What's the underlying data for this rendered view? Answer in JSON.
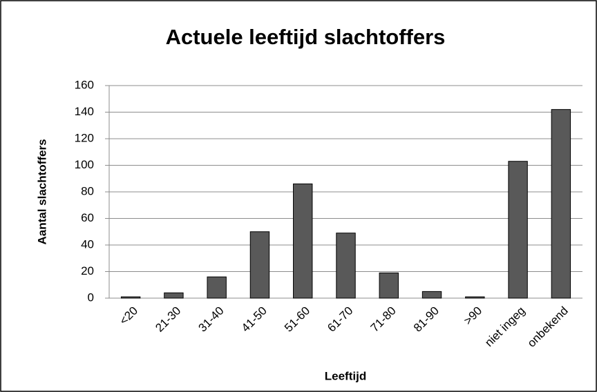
{
  "chart_data": {
    "type": "bar",
    "title": "Actuele leeftijd slachtoffers",
    "x_label": "Leeftijd",
    "y_label": "Aantal slachtoffers",
    "categories": [
      "<20",
      "21-30",
      "31-40",
      "41-50",
      "51-60",
      "61-70",
      "71-80",
      "81-90",
      ">90",
      "niet ingeg",
      "onbekend"
    ],
    "values": [
      1,
      4,
      16,
      50,
      86,
      49,
      19,
      5,
      1,
      103,
      142
    ],
    "color": "#595959",
    "ylim": [
      0,
      160
    ],
    "yticks": [
      0,
      20,
      40,
      60,
      80,
      100,
      120,
      140,
      160
    ],
    "grid": true
  }
}
